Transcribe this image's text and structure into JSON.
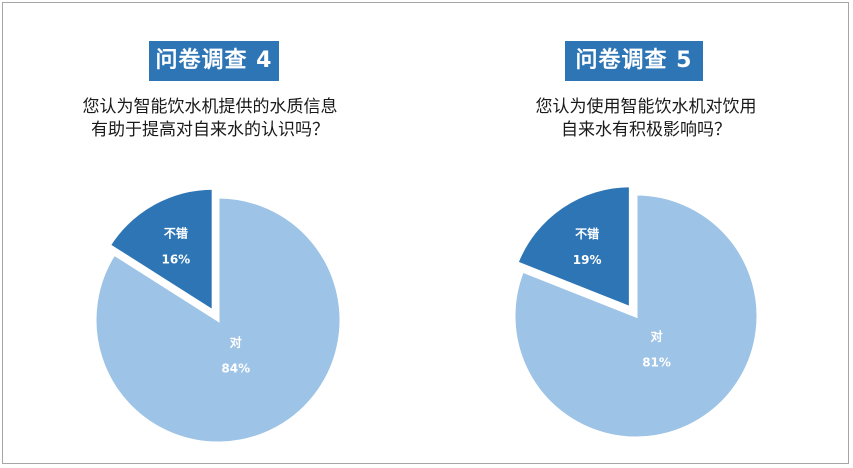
{
  "surveys": [
    {
      "title": "问卷调查 4",
      "question_lines": [
        "您认为智能饮水机提供的水质信息",
        "有助于提高对自来水的认识吗？"
      ]
    },
    {
      "title": "问卷调查 5",
      "question_lines": [
        "您认为使用智能饮水机对饮用",
        "自来水有积极影响吗？"
      ]
    }
  ],
  "chart_data": [
    {
      "type": "pie",
      "title": "问卷调查 4",
      "categories": [
        "对",
        "不错"
      ],
      "values": [
        84,
        16
      ],
      "value_labels": [
        "84%",
        "16%"
      ],
      "colors": [
        "#9dc3e6",
        "#2e75b6"
      ],
      "exploded": "不错"
    },
    {
      "type": "pie",
      "title": "问卷调查 5",
      "categories": [
        "对",
        "不错"
      ],
      "values": [
        81,
        19
      ],
      "value_labels": [
        "81%",
        "19%"
      ],
      "colors": [
        "#9dc3e6",
        "#2e75b6"
      ],
      "exploded": "不错"
    }
  ]
}
